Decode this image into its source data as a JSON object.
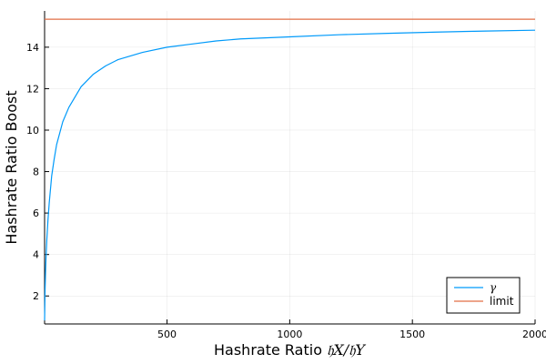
{
  "chart_data": {
    "type": "line",
    "title": "",
    "xlabel": "Hashrate Ratio",
    "xlabel_math": "𝔥X/𝔥Y",
    "ylabel": "Hashrate Ratio Boost",
    "xlim": [
      1,
      2000
    ],
    "ylim": [
      0.65,
      15.75
    ],
    "xticks": [
      500,
      1000,
      1500,
      2000
    ],
    "yticks": [
      2,
      4,
      6,
      8,
      10,
      12,
      14
    ],
    "grid": true,
    "legend_position": "bottom-right",
    "series": [
      {
        "name": "γ",
        "color": "#009AFA",
        "x": [
          1,
          2,
          3,
          5,
          7,
          10,
          15,
          20,
          30,
          40,
          50,
          75,
          100,
          150,
          200,
          250,
          300,
          400,
          500,
          600,
          700,
          800,
          900,
          1000,
          1200,
          1400,
          1600,
          1800,
          2000
        ],
        "y": [
          0.82,
          1.6,
          2.3,
          3.2,
          3.9,
          4.7,
          5.7,
          6.5,
          7.8,
          8.6,
          9.3,
          10.4,
          11.1,
          12.1,
          12.7,
          13.1,
          13.4,
          13.75,
          14.0,
          14.15,
          14.3,
          14.4,
          14.45,
          14.5,
          14.6,
          14.67,
          14.73,
          14.78,
          14.82
        ]
      },
      {
        "name": "limit",
        "color": "#E26F46",
        "x": [
          1,
          2000
        ],
        "y": [
          15.35,
          15.35
        ]
      }
    ]
  }
}
